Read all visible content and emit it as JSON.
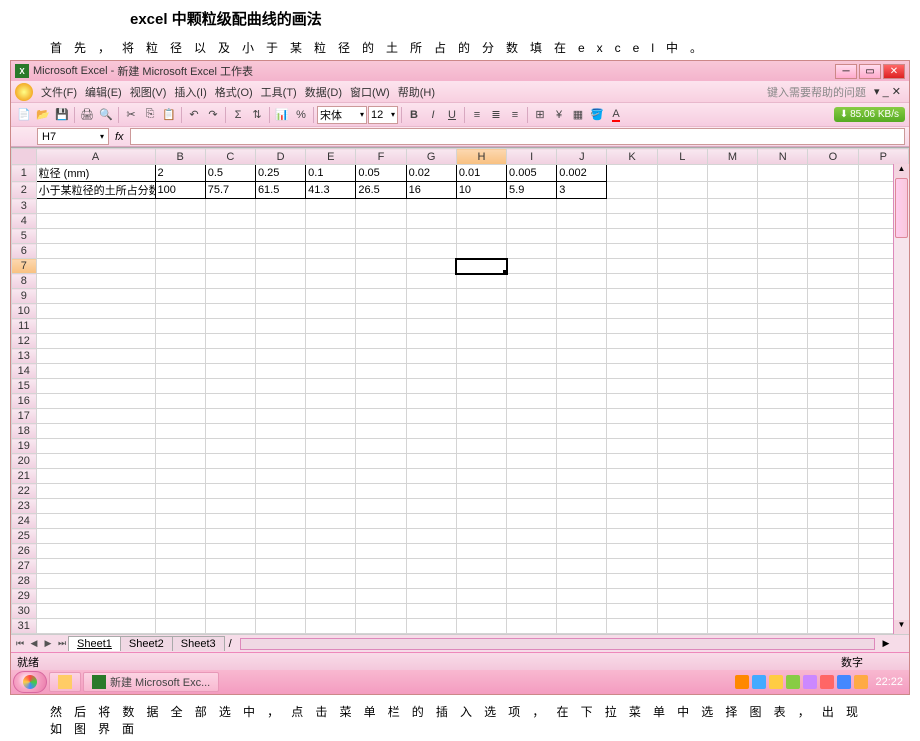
{
  "doc": {
    "title": "excel 中颗粒级配曲线的画法",
    "line1": "首先，将粒径以及小于某粒径的土所占的分数填在excel中。",
    "line2": "然后将数据全部选中，点击菜单栏的插入选项，在下拉菜单中选择图表，出现如图界面"
  },
  "titlebar": {
    "app": "Microsoft Excel",
    "file": "新建 Microsoft Excel 工作表"
  },
  "menu": {
    "file": "文件(F)",
    "edit": "编辑(E)",
    "view": "视图(V)",
    "insert": "插入(I)",
    "format": "格式(O)",
    "tools": "工具(T)",
    "data": "数据(D)",
    "window": "窗口(W)",
    "help": "帮助(H)",
    "help_placeholder": "键入需要帮助的问题"
  },
  "toolbar": {
    "font_name": "宋体",
    "font_size": "12",
    "speed": "85.06 KB/s"
  },
  "formula": {
    "cell_ref": "H7",
    "fx": "fx"
  },
  "grid": {
    "columns": [
      "A",
      "B",
      "C",
      "D",
      "E",
      "F",
      "G",
      "H",
      "I",
      "J",
      "K",
      "L",
      "M",
      "N",
      "O",
      "P"
    ],
    "selected_col": "H",
    "selected_row": 7,
    "row_count": 31,
    "data_rows": [
      {
        "label": "粒径 (mm)",
        "values": [
          "2",
          "0.5",
          "0.25",
          "0.1",
          "0.05",
          "0.02",
          "0.01",
          "0.005",
          "0.002"
        ]
      },
      {
        "label": "小于某粒径的土所占分数（%）",
        "values": [
          "100",
          "75.7",
          "61.5",
          "41.3",
          "26.5",
          "16",
          "10",
          "5.9",
          "3"
        ]
      }
    ]
  },
  "sheets": {
    "s1": "Sheet1",
    "s2": "Sheet2",
    "s3": "Sheet3"
  },
  "status": {
    "ready": "就绪",
    "mode": "数字"
  },
  "taskbar": {
    "item1": "",
    "item2": "新建 Microsoft Exc...",
    "clock": "22:22",
    "tray_colors": [
      "#f80",
      "#4af",
      "#fc4",
      "#8c4",
      "#c8f",
      "#f66",
      "#48f",
      "#fa4"
    ]
  }
}
